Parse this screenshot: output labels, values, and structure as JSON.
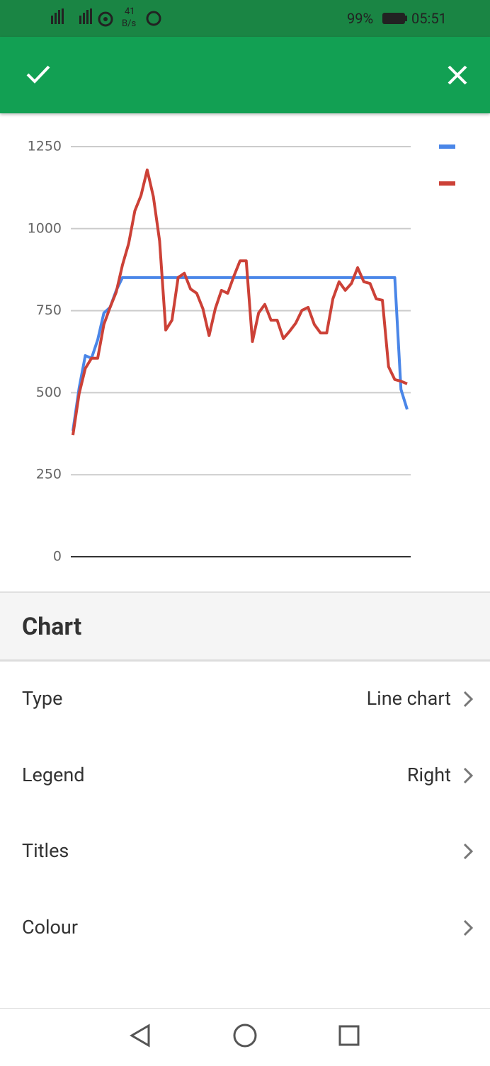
{
  "status_bar": {
    "network_speed": "41",
    "speed_unit": "B/s",
    "battery": "99%",
    "time": "05:51"
  },
  "chart_data": {
    "type": "line",
    "ylim": [
      0,
      1250
    ],
    "yticks": [
      0,
      250,
      500,
      750,
      1000,
      1250
    ],
    "grid": true,
    "legend": "right",
    "series": [
      {
        "color": "#4a86e8",
        "values": [
          384,
          514,
          613,
          605,
          661,
          743,
          760,
          812,
          851,
          851,
          851,
          851,
          851,
          851,
          851,
          851,
          851,
          851,
          851,
          851,
          851,
          851,
          851,
          851,
          851,
          851,
          851,
          851,
          851,
          851,
          851,
          851,
          851,
          851,
          851,
          851,
          851,
          851,
          851,
          851,
          851,
          851,
          851,
          851,
          851,
          851,
          851,
          851,
          851,
          851,
          851,
          851,
          851,
          510,
          449
        ]
      },
      {
        "color": "#cc4137",
        "values": [
          371,
          497,
          574,
          605,
          605,
          708,
          760,
          807,
          889,
          954,
          1054,
          1101,
          1179,
          1097,
          963,
          691,
          721,
          851,
          864,
          816,
          803,
          756,
          674,
          756,
          812,
          803,
          855,
          902,
          902,
          656,
          743,
          769,
          721,
          721,
          665,
          687,
          712,
          751,
          760,
          708,
          682,
          682,
          786,
          838,
          812,
          833,
          881,
          838,
          833,
          786,
          782,
          579,
          540,
          535,
          527
        ]
      }
    ]
  },
  "settings": {
    "section_title": "Chart",
    "rows": [
      {
        "label": "Type",
        "value": "Line chart"
      },
      {
        "label": "Legend",
        "value": "Right"
      },
      {
        "label": "Titles"
      },
      {
        "label": "Colour"
      }
    ]
  }
}
